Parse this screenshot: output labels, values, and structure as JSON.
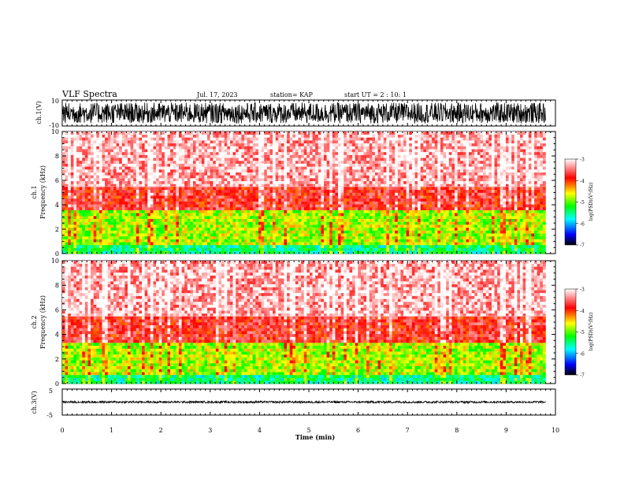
{
  "header": {
    "title": "VLF Spectra",
    "date": "Jul. 17, 2023",
    "station": "station= KAP",
    "start": "start UT =  2 : 10: 1"
  },
  "panels": {
    "ch1_wave": {
      "ylabel": "ch.1(V)",
      "ymax": "10",
      "ymin": "-10"
    },
    "ch1_spec": {
      "ylabel_line1": "ch.1",
      "ylabel_line2": "Frequency (kHz)"
    },
    "ch2_spec": {
      "ylabel_line1": "ch.2",
      "ylabel_line2": "Frequency (kHz)"
    },
    "ch3_wave": {
      "ylabel": "ch.3(V)",
      "ymax": "5",
      "ymin": "-5"
    }
  },
  "colorbar": {
    "label": "log(PSD)(V²/Hz)",
    "ticks": [
      "-3",
      "-4",
      "-5",
      "-6",
      "-7"
    ],
    "colors": [
      "#ffffff",
      "#ff0000",
      "#ffff00",
      "#00ff00",
      "#00ffff",
      "#0000ff",
      "#000000"
    ]
  },
  "chart_data": [
    {
      "type": "line",
      "name": "ch1 waveform",
      "xlim": [
        0,
        9.8
      ],
      "ylim": [
        -10,
        10
      ],
      "ylabel": "ch.1(V)",
      "description_values": {
        "typical_range": [
          -8,
          8
        ]
      }
    },
    {
      "type": "heatmap",
      "name": "ch1 spectrogram",
      "xlim": [
        0,
        9.8
      ],
      "ylim": [
        0,
        10
      ],
      "yticks": [
        "0",
        "2",
        "4",
        "6",
        "8",
        "10"
      ],
      "ylabel": "Frequency (kHz)",
      "bands": [
        {
          "from_khz": 0,
          "to_khz": 0.6,
          "level": -5.5
        },
        {
          "from_khz": 0.6,
          "to_khz": 3.6,
          "level": -4.8
        },
        {
          "from_khz": 3.6,
          "to_khz": 5.5,
          "level": -3.8
        },
        {
          "from_khz": 5.5,
          "to_khz": 10,
          "level": -3.3
        }
      ]
    },
    {
      "type": "heatmap",
      "name": "ch2 spectrogram",
      "xlim": [
        0,
        9.8
      ],
      "ylim": [
        0,
        10
      ],
      "yticks": [
        "0",
        "2",
        "4",
        "6",
        "8",
        "10"
      ],
      "ylabel": "Frequency (kHz)",
      "bands": [
        {
          "from_khz": 0,
          "to_khz": 0.6,
          "level": -5.5
        },
        {
          "from_khz": 0.6,
          "to_khz": 3.4,
          "level": -4.8
        },
        {
          "from_khz": 3.4,
          "to_khz": 5.5,
          "level": -3.8
        },
        {
          "from_khz": 5.5,
          "to_khz": 10,
          "level": -3.3
        }
      ]
    },
    {
      "type": "line",
      "name": "ch3 waveform",
      "xlim": [
        0,
        9.8
      ],
      "ylim": [
        -5,
        5
      ],
      "ylabel": "ch.3(V)",
      "description_values": {
        "typical_range": [
          -0.4,
          0.4
        ]
      }
    }
  ],
  "xaxis": {
    "label": "Time (min)",
    "ticks": [
      "0",
      "1",
      "2",
      "3",
      "4",
      "5",
      "6",
      "7",
      "8",
      "9",
      "10"
    ],
    "xlim": [
      0,
      10
    ]
  }
}
